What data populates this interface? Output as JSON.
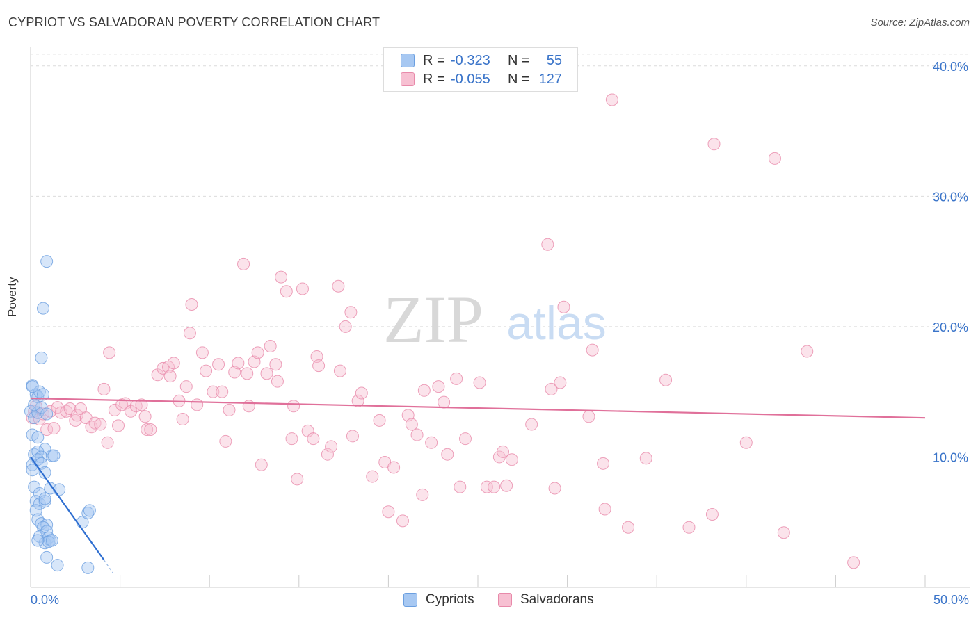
{
  "header": {
    "title": "CYPRIOT VS SALVADORAN POVERTY CORRELATION CHART",
    "source": "Source: ZipAtlas.com"
  },
  "watermark": {
    "zip": "ZIP",
    "atlas": "atlas"
  },
  "legend": {
    "rows": [
      {
        "r_label": "R =",
        "r_value": "-0.323",
        "n_label": "N =",
        "n_value": "55",
        "color": "#a7c8f2",
        "border": "#6b9fe0"
      },
      {
        "r_label": "R =",
        "r_value": "-0.055",
        "n_label": "N =",
        "n_value": "127",
        "color": "#f7c0d2",
        "border": "#e88aaa"
      }
    ]
  },
  "bottom_legend": [
    {
      "label": "Cypriots",
      "color": "#a7c8f2",
      "border": "#6b9fe0"
    },
    {
      "label": "Salvadorans",
      "color": "#f7c0d2",
      "border": "#e88aaa"
    }
  ],
  "axes": {
    "y_label": "Poverty",
    "x_min_label": "0.0%",
    "x_max_label": "50.0%",
    "y_ticks": [
      "10.0%",
      "20.0%",
      "30.0%",
      "40.0%"
    ]
  },
  "chart_data": {
    "type": "scatter",
    "title": "CYPRIOT VS SALVADORAN POVERTY CORRELATION CHART",
    "xlabel": "",
    "ylabel": "Poverty",
    "xlim": [
      0,
      50
    ],
    "ylim": [
      0,
      41
    ],
    "y_ticks": [
      10,
      20,
      30,
      40
    ],
    "grid": true,
    "legend_position": "top-center",
    "colors": {
      "cypriots": "#6b9fe0",
      "salvadorans": "#e88aaa",
      "cypriots_line": "#2f6fd1",
      "salvadorans_line": "#e0709a"
    },
    "series": [
      {
        "name": "Cypriots",
        "regression": {
          "x": [
            0.0,
            4.1
          ],
          "y": [
            10.0,
            2.1
          ],
          "dashed_to": [
            4.6,
            1.1
          ]
        },
        "points": [
          [
            0.1,
            15.5
          ],
          [
            0.3,
            14.8
          ],
          [
            0.4,
            14.6
          ],
          [
            0.5,
            15.0
          ],
          [
            0.7,
            14.8
          ],
          [
            0.0,
            13.5
          ],
          [
            0.2,
            13.0
          ],
          [
            0.4,
            13.4
          ],
          [
            0.6,
            13.8
          ],
          [
            0.9,
            13.3
          ],
          [
            0.1,
            11.7
          ],
          [
            0.4,
            11.5
          ],
          [
            0.8,
            10.6
          ],
          [
            0.2,
            10.2
          ],
          [
            0.4,
            10.4
          ],
          [
            0.6,
            10.0
          ],
          [
            1.2,
            10.1
          ],
          [
            1.3,
            10.1
          ],
          [
            0.1,
            9.4
          ],
          [
            0.4,
            9.8
          ],
          [
            0.6,
            9.5
          ],
          [
            0.8,
            8.8
          ],
          [
            0.1,
            9.0
          ],
          [
            0.2,
            7.7
          ],
          [
            0.5,
            7.2
          ],
          [
            1.1,
            7.6
          ],
          [
            1.6,
            7.5
          ],
          [
            0.3,
            6.6
          ],
          [
            0.5,
            6.4
          ],
          [
            0.8,
            6.6
          ],
          [
            0.8,
            6.8
          ],
          [
            0.3,
            5.9
          ],
          [
            0.4,
            5.2
          ],
          [
            0.6,
            4.9
          ],
          [
            0.9,
            4.8
          ],
          [
            0.7,
            4.6
          ],
          [
            0.9,
            4.3
          ],
          [
            0.5,
            3.9
          ],
          [
            1.0,
            3.8
          ],
          [
            0.8,
            3.4
          ],
          [
            1.1,
            3.6
          ],
          [
            1.0,
            3.5
          ],
          [
            1.2,
            3.6
          ],
          [
            0.4,
            3.6
          ],
          [
            0.9,
            2.3
          ],
          [
            1.5,
            1.7
          ],
          [
            2.9,
            5.0
          ],
          [
            3.2,
            5.7
          ],
          [
            3.3,
            5.9
          ],
          [
            3.2,
            1.5
          ],
          [
            0.9,
            25.0
          ],
          [
            0.7,
            21.4
          ],
          [
            0.6,
            17.6
          ],
          [
            0.1,
            15.4
          ],
          [
            0.2,
            14.0
          ]
        ]
      },
      {
        "name": "Salvadorans",
        "regression": {
          "x": [
            0.0,
            50.0
          ],
          "y": [
            14.5,
            13.0
          ]
        },
        "points": [
          [
            0.1,
            13.0
          ],
          [
            0.2,
            13.5
          ],
          [
            0.3,
            13.9
          ],
          [
            0.5,
            12.9
          ],
          [
            0.7,
            13.3
          ],
          [
            0.9,
            12.1
          ],
          [
            1.1,
            13.5
          ],
          [
            1.3,
            12.2
          ],
          [
            1.5,
            13.8
          ],
          [
            1.7,
            13.4
          ],
          [
            2.0,
            13.5
          ],
          [
            2.2,
            13.7
          ],
          [
            2.5,
            12.8
          ],
          [
            2.6,
            13.2
          ],
          [
            2.8,
            13.7
          ],
          [
            3.1,
            13.0
          ],
          [
            3.4,
            12.3
          ],
          [
            3.6,
            12.6
          ],
          [
            3.9,
            12.5
          ],
          [
            4.1,
            15.2
          ],
          [
            4.3,
            11.1
          ],
          [
            4.4,
            18.0
          ],
          [
            4.7,
            13.6
          ],
          [
            4.9,
            12.4
          ],
          [
            5.1,
            14.0
          ],
          [
            5.3,
            14.1
          ],
          [
            5.6,
            13.5
          ],
          [
            5.9,
            13.9
          ],
          [
            6.2,
            14.0
          ],
          [
            6.4,
            13.1
          ],
          [
            6.5,
            12.1
          ],
          [
            6.7,
            12.1
          ],
          [
            7.1,
            16.3
          ],
          [
            7.4,
            16.8
          ],
          [
            7.7,
            16.9
          ],
          [
            7.8,
            16.2
          ],
          [
            8.0,
            17.2
          ],
          [
            8.3,
            14.3
          ],
          [
            8.5,
            12.9
          ],
          [
            8.7,
            15.4
          ],
          [
            8.9,
            19.5
          ],
          [
            9.0,
            21.7
          ],
          [
            9.3,
            14.0
          ],
          [
            9.6,
            18.0
          ],
          [
            9.8,
            16.6
          ],
          [
            10.2,
            15.0
          ],
          [
            10.5,
            17.1
          ],
          [
            10.7,
            15.0
          ],
          [
            10.9,
            11.2
          ],
          [
            11.1,
            13.6
          ],
          [
            11.4,
            16.5
          ],
          [
            11.6,
            17.2
          ],
          [
            11.9,
            24.8
          ],
          [
            12.1,
            16.4
          ],
          [
            12.2,
            13.9
          ],
          [
            12.5,
            17.3
          ],
          [
            12.7,
            18.0
          ],
          [
            12.9,
            9.4
          ],
          [
            13.2,
            16.4
          ],
          [
            13.4,
            18.5
          ],
          [
            13.7,
            17.1
          ],
          [
            13.8,
            15.8
          ],
          [
            14.0,
            23.8
          ],
          [
            14.3,
            22.7
          ],
          [
            14.6,
            11.4
          ],
          [
            14.7,
            13.9
          ],
          [
            14.9,
            8.3
          ],
          [
            15.2,
            22.9
          ],
          [
            15.5,
            12.0
          ],
          [
            15.8,
            11.4
          ],
          [
            16.0,
            17.7
          ],
          [
            16.1,
            17.0
          ],
          [
            16.6,
            10.2
          ],
          [
            16.8,
            10.8
          ],
          [
            17.2,
            23.1
          ],
          [
            17.3,
            16.6
          ],
          [
            17.6,
            20.0
          ],
          [
            17.9,
            21.1
          ],
          [
            18.0,
            11.6
          ],
          [
            18.3,
            14.3
          ],
          [
            18.5,
            14.9
          ],
          [
            19.1,
            8.5
          ],
          [
            19.5,
            12.8
          ],
          [
            19.8,
            9.6
          ],
          [
            20.0,
            5.8
          ],
          [
            20.3,
            9.2
          ],
          [
            20.8,
            5.1
          ],
          [
            21.1,
            13.2
          ],
          [
            21.3,
            12.5
          ],
          [
            21.6,
            11.7
          ],
          [
            21.9,
            7.1
          ],
          [
            22.0,
            15.1
          ],
          [
            22.4,
            11.1
          ],
          [
            22.8,
            15.4
          ],
          [
            23.1,
            14.2
          ],
          [
            23.3,
            10.2
          ],
          [
            23.8,
            16.0
          ],
          [
            24.0,
            7.7
          ],
          [
            24.3,
            11.4
          ],
          [
            25.1,
            15.7
          ],
          [
            25.5,
            7.7
          ],
          [
            25.9,
            7.7
          ],
          [
            26.2,
            10.0
          ],
          [
            26.4,
            10.4
          ],
          [
            26.6,
            7.8
          ],
          [
            26.9,
            9.8
          ],
          [
            28.0,
            12.5
          ],
          [
            28.9,
            26.3
          ],
          [
            29.1,
            15.2
          ],
          [
            29.3,
            7.6
          ],
          [
            29.6,
            15.7
          ],
          [
            29.8,
            21.5
          ],
          [
            31.2,
            13.1
          ],
          [
            31.4,
            18.2
          ],
          [
            32.0,
            9.5
          ],
          [
            32.1,
            6.0
          ],
          [
            33.4,
            4.6
          ],
          [
            34.4,
            9.9
          ],
          [
            35.5,
            15.9
          ],
          [
            36.8,
            4.6
          ],
          [
            38.1,
            5.6
          ],
          [
            38.2,
            34.0
          ],
          [
            40.0,
            11.1
          ],
          [
            41.6,
            32.9
          ],
          [
            42.1,
            4.2
          ],
          [
            43.4,
            18.1
          ],
          [
            46.0,
            1.9
          ]
        ]
      }
    ],
    "outlier_note_points": [
      [
        32.5,
        37.4
      ]
    ]
  }
}
